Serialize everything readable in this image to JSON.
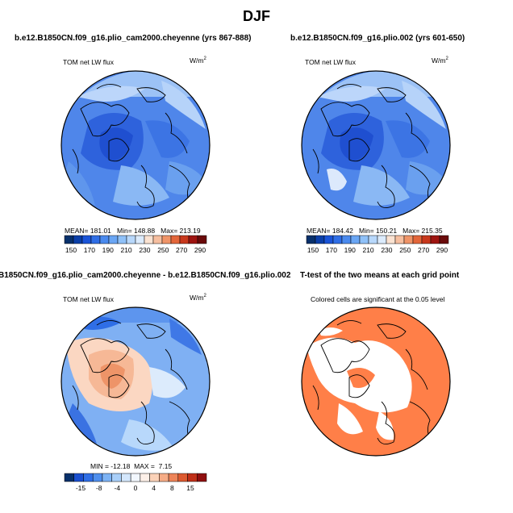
{
  "figure": {
    "title": "DJF"
  },
  "panels": [
    {
      "title": "b.e12.B1850CN.f09_g16.plio_cam2000.cheyenne (yrs 867-888)",
      "variable": "TOM net LW flux",
      "units_base": "W/m",
      "units_exp": "2",
      "stats": {
        "mean_label": "MEAN=",
        "mean": "181.01",
        "min_label": "Min=",
        "min": "148.88",
        "max_label": "Max=",
        "max": "213.19"
      },
      "colorbar": {
        "colors": [
          "#08306b",
          "#0b3fa8",
          "#1a54d8",
          "#2f6ee6",
          "#4a8aee",
          "#6aa6f4",
          "#8fc1f8",
          "#b8d8fb",
          "#dcebfc",
          "#fbe3d2",
          "#f6bfa0",
          "#ef9468",
          "#e3663a",
          "#c8381c",
          "#9e1410",
          "#6a0a0a"
        ],
        "labels": [
          "150",
          "170",
          "190",
          "210",
          "230",
          "250",
          "270",
          "290"
        ]
      }
    },
    {
      "title": "b.e12.B1850CN.f09_g16.plio.002 (yrs 601-650)",
      "variable": "TOM net LW flux",
      "units_base": "W/m",
      "units_exp": "2",
      "stats": {
        "mean_label": "MEAN=",
        "mean": "184.42",
        "min_label": "Min=",
        "min": "150.21",
        "max_label": "Max=",
        "max": "215.35"
      },
      "colorbar": {
        "colors": [
          "#08306b",
          "#0b3fa8",
          "#1a54d8",
          "#2f6ee6",
          "#4a8aee",
          "#6aa6f4",
          "#8fc1f8",
          "#b8d8fb",
          "#dcebfc",
          "#fbe3d2",
          "#f6bfa0",
          "#ef9468",
          "#e3663a",
          "#c8381c",
          "#9e1410",
          "#6a0a0a"
        ],
        "labels": [
          "150",
          "170",
          "190",
          "210",
          "230",
          "250",
          "270",
          "290"
        ]
      }
    },
    {
      "title": "B1850CN.f09_g16.plio_cam2000.cheyenne - b.e12.B1850CN.f09_g16.plio.002",
      "variable": "TOM net LW flux",
      "units_base": "W/m",
      "units_exp": "2",
      "stats": {
        "min_label": "MIN =",
        "min": "-12.18",
        "max_label": "MAX =",
        "max": "7.15"
      },
      "colorbar": {
        "colors": [
          "#08306b",
          "#1a4fd0",
          "#2f6ee6",
          "#4f8fee",
          "#7db3f5",
          "#a9cff9",
          "#d4e7fc",
          "#f2f7fe",
          "#fdf0e8",
          "#fbd2b8",
          "#f6ac86",
          "#ee8458",
          "#dd5a30",
          "#c03018",
          "#8f0f0f"
        ],
        "labels": [
          "-15",
          "-8",
          "-4",
          "0",
          "4",
          "8",
          "15"
        ]
      }
    },
    {
      "title": "T-test of the two means at each grid point",
      "note": "Colored cells are significant at the 0.05 level"
    }
  ]
}
